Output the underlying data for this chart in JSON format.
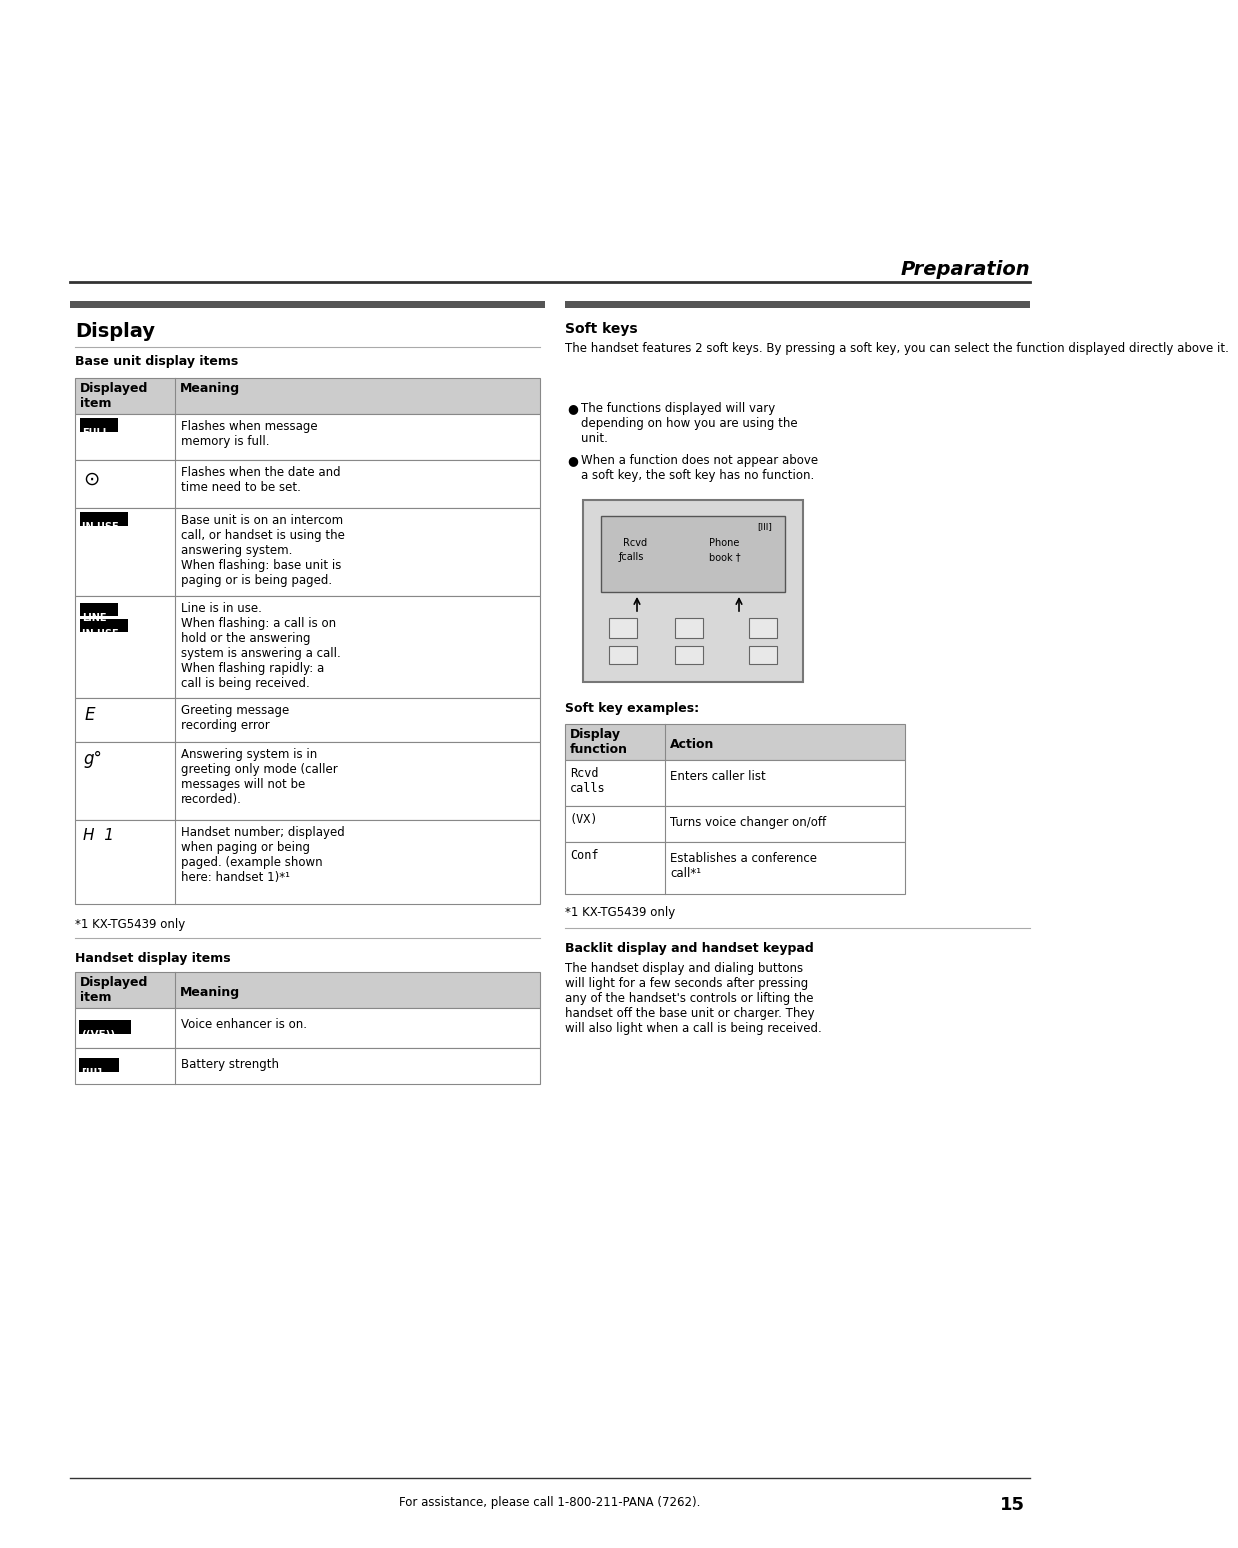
{
  "page_title": "Preparation",
  "section_title": "Display",
  "background_color": "#ffffff",
  "text_color": "#000000",
  "header_bg": "#cccccc",
  "table_border": "#888888",
  "footer_text": "For assistance, please call 1-800-211-PANA (7262).",
  "footer_page": "15",
  "base_section_title": "Base unit display items",
  "handset_section_title": "Handset display items",
  "footnote1": "*1 KX-TG5439 only",
  "soft_keys_title": "Soft keys",
  "soft_keys_text": "The handset features 2 soft keys. By pressing a soft key, you can select the function displayed directly above it.",
  "bullet1": "The functions displayed will vary\ndepending on how you are using the\nunit.",
  "bullet2": "When a function does not appear above\na soft key, the soft key has no function.",
  "soft_key_examples_title": "Soft key examples:",
  "footnote2": "*1 KX-TG5439 only",
  "backlit_title": "Backlit display and handset keypad",
  "backlit_text": "The handset display and dialing buttons\nwill light for a few seconds after pressing\nany of the handset's controls or lifting the\nhandset off the base unit or charger. They\nwill also light when a call is being received."
}
